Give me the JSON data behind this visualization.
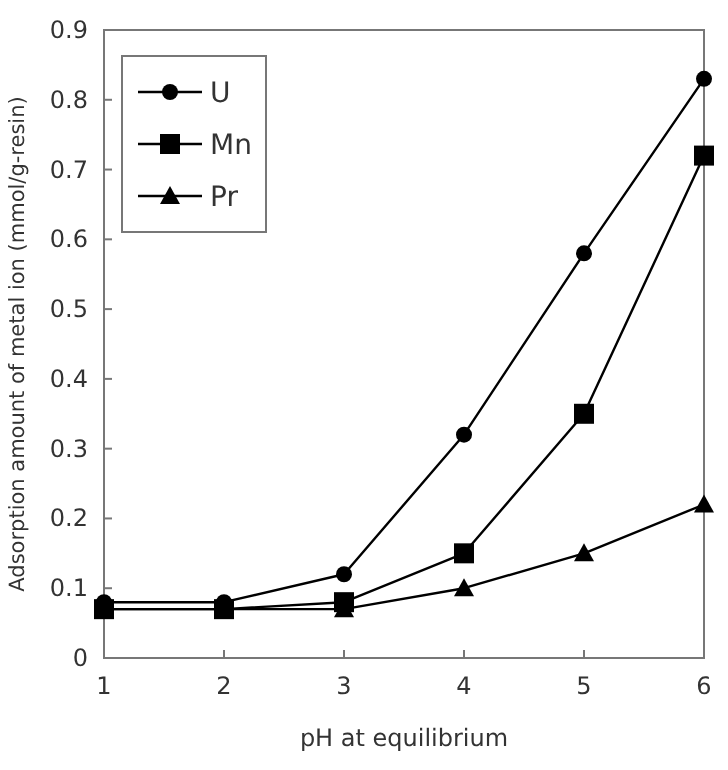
{
  "chart_data": {
    "type": "line",
    "xlabel": "pH at equilibrium",
    "ylabel": "Adsorption amount of metal ion (mmol/g-resin)",
    "x": [
      1,
      2,
      3,
      4,
      5,
      6
    ],
    "series": [
      {
        "name": "U",
        "color": "#000000",
        "marker": "circle",
        "values": [
          0.08,
          0.08,
          0.12,
          0.32,
          0.58,
          0.83
        ]
      },
      {
        "name": "Mn",
        "color": "#000000",
        "marker": "square",
        "values": [
          0.07,
          0.07,
          0.08,
          0.15,
          0.35,
          0.72
        ]
      },
      {
        "name": "Pr",
        "color": "#000000",
        "marker": "triangle",
        "values": [
          0.07,
          0.07,
          0.07,
          0.1,
          0.15,
          0.22
        ]
      }
    ],
    "xlim": [
      1,
      6
    ],
    "xticks": [
      1,
      2,
      3,
      4,
      5,
      6
    ],
    "ylim": [
      0,
      0.9
    ],
    "yticks": [
      0,
      0.1,
      0.2,
      0.3,
      0.4,
      0.5,
      0.6,
      0.7,
      0.8,
      0.9
    ],
    "grid": false,
    "legend": "top left",
    "line_style": "solid"
  }
}
